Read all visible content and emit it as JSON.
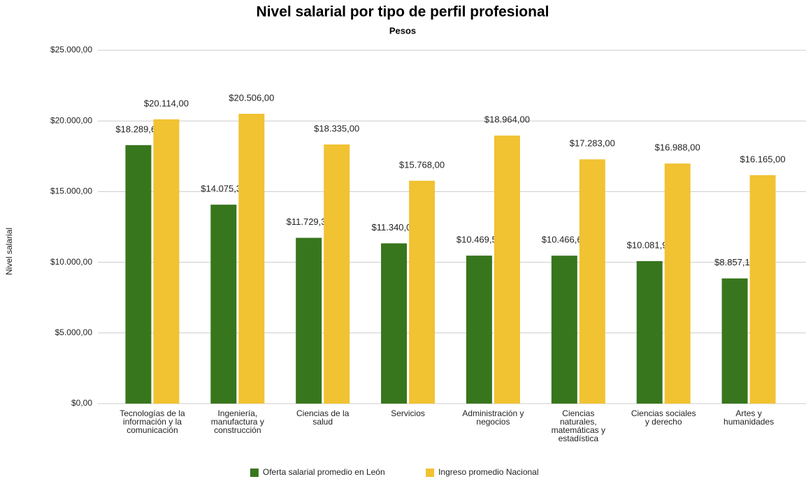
{
  "chart_data": {
    "type": "bar",
    "title": "Nivel salarial por tipo de perfil profesional",
    "subtitle": "Pesos",
    "y_label": "Nivel salarial",
    "categories": [
      "Tecnologías de la información y la comunicación",
      "Ingeniería, manufactura y construcción",
      "Ciencias de la salud",
      "Servicios",
      "Administración y negocios",
      "Ciencias naturales, matemáticas y estadística",
      "Ciencias sociales y derecho",
      "Artes y humanidades"
    ],
    "series": [
      {
        "name": "Oferta salarial promedio en León",
        "color": "#38761d",
        "values": [
          18289.67,
          14075.34,
          11729.38,
          11340.0,
          10469.59,
          10466.67,
          10081.93,
          8857.14
        ],
        "value_labels": [
          "$18.289,67",
          "$14.075,34",
          "$11.729,38",
          "$11.340,00",
          "$10.469,59",
          "$10.466,67",
          "$10.081,93",
          "$8.857,14"
        ]
      },
      {
        "name": "Ingreso promedio Nacional",
        "color": "#f1c232",
        "values": [
          20114,
          20506,
          18335,
          15768,
          18964,
          17283,
          16988,
          16165
        ],
        "value_labels": [
          "$20.114,00",
          "$20.506,00",
          "$18.335,00",
          "$15.768,00",
          "$18.964,00",
          "$17.283,00",
          "$16.988,00",
          "$16.165,00"
        ]
      }
    ],
    "ylim": [
      0,
      25000
    ],
    "yticks": [
      {
        "value": 0,
        "label": "$0,00"
      },
      {
        "value": 5000,
        "label": "$5.000,00"
      },
      {
        "value": 10000,
        "label": "$10.000,00"
      },
      {
        "value": 15000,
        "label": "$15.000,00"
      },
      {
        "value": 20000,
        "label": "$20.000,00"
      },
      {
        "value": 25000,
        "label": "$25.000,00"
      }
    ],
    "grid": true,
    "legend": "bottom"
  }
}
